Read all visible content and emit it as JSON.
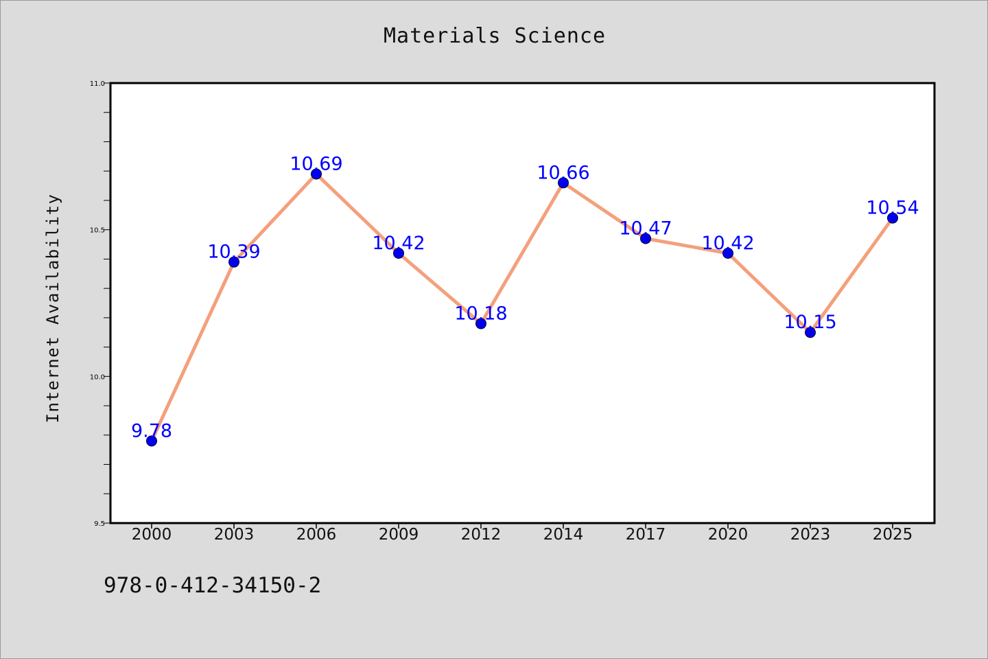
{
  "chart_data": {
    "type": "line",
    "title": "Materials Science",
    "xlabel": "",
    "ylabel": "Internet Availability",
    "categories": [
      "2000",
      "2003",
      "2006",
      "2009",
      "2012",
      "2014",
      "2017",
      "2020",
      "2023",
      "2025"
    ],
    "values": [
      9.78,
      10.39,
      10.69,
      10.42,
      10.18,
      10.66,
      10.47,
      10.42,
      10.15,
      10.54
    ],
    "data_labels": [
      "9.78",
      "10.39",
      "10.69",
      "10.42",
      "10.18",
      "10.66",
      "10.47",
      "10.42",
      "10.15",
      "10.54"
    ],
    "ylim": [
      9.5,
      11.0
    ],
    "y_ticks": [
      "9.5",
      "10.0",
      "10.5",
      "11.0"
    ],
    "grid": false,
    "colors": {
      "line": "#f4a07c",
      "marker": "#0000ee",
      "label": "#0000ff",
      "background": "#dcdcdc",
      "plot_background": "#ffffff"
    }
  },
  "footer_text": "978-0-412-34150-2"
}
